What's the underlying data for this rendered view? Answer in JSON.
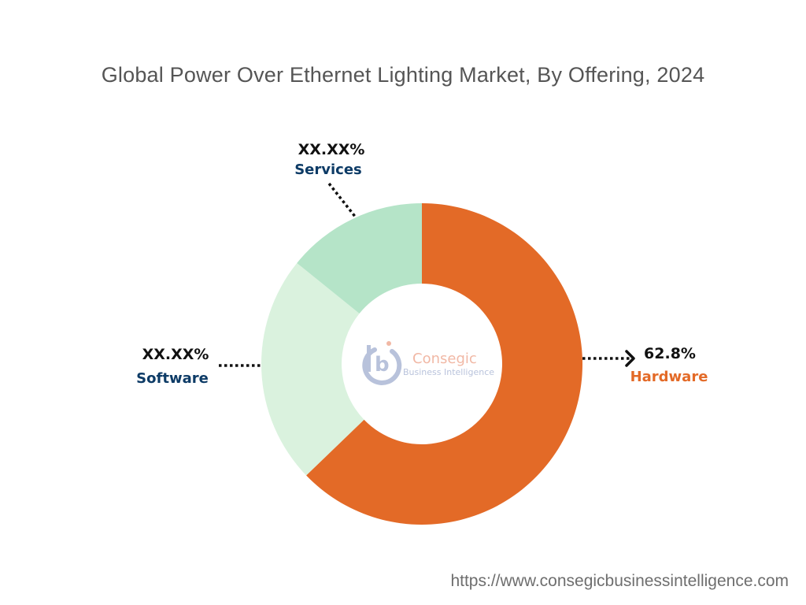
{
  "chart_data": {
    "type": "pie",
    "style": "donut",
    "title": "Global Power Over Ethernet Lighting Market, By Offering, 2024",
    "slices": [
      {
        "name": "Hardware",
        "value": 62.8,
        "label": "62.8%",
        "color": "#e36a27",
        "label_color": "#e36a27"
      },
      {
        "name": "Software",
        "value": 23.0,
        "label": "XX.XX%",
        "color": "#daf2de",
        "label_color": "#0d3b66"
      },
      {
        "name": "Services",
        "value": 14.2,
        "label": "XX.XX%",
        "color": "#b5e4c8",
        "label_color": "#0d3b66"
      }
    ],
    "start": "12 o'clock",
    "direction": "clockwise"
  },
  "logo": {
    "name": "Consegic",
    "tagline": "Business Intelligence"
  },
  "footer": {
    "url": "https://www.consegicbusinessintelligence.com"
  }
}
